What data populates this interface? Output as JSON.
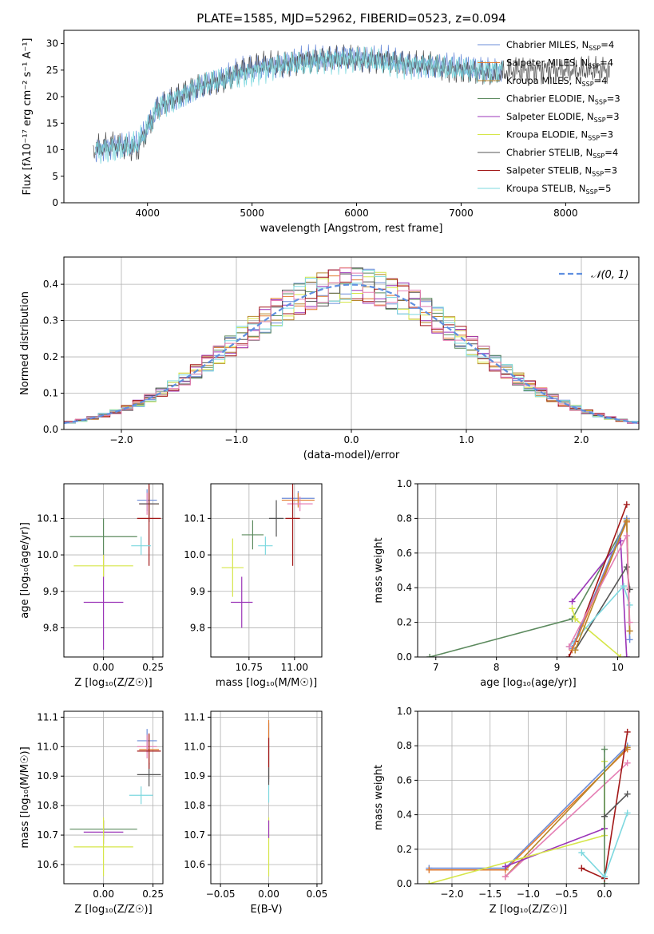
{
  "title": "PLATE=1585, MJD=52962, FIBERID=0523, z=0.094",
  "colors": {
    "Chabrier MILES": "#6b8cd9",
    "Salpeter MILES": "#e27a2c",
    "Kroupa MILES": "#b8862b",
    "Chabrier ELODIE": "#5c8a5e",
    "Salpeter ELODIE": "#9b35b8",
    "Kroupa ELODIE": "#d6e64a",
    "Chabrier STELIB": "#555555",
    "Salpeter STELIB": "#a21818",
    "Kroupa STELIB": "#7dd8df",
    "pink": "#e57fb5"
  },
  "chart_data": [
    {
      "id": "spectrum",
      "type": "line",
      "title": "PLATE=1585, MJD=52962, FIBERID=0523, z=0.094",
      "xlabel": "wavelength [Angstrom, rest frame]",
      "ylabel": "Flux [fλ10⁻¹⁷ erg cm⁻² s⁻¹ A⁻¹]",
      "xlim": [
        3200,
        8700
      ],
      "ylim": [
        0,
        32.5
      ],
      "xticks": [
        4000,
        5000,
        6000,
        7000,
        8000
      ],
      "yticks": [
        0,
        5,
        10,
        15,
        20,
        25,
        30
      ],
      "legend_position": "right",
      "legend": [
        {
          "label": "Chabrier MILES, N",
          "sub": "SSP",
          "tail": "=4",
          "color": "#6b8cd9"
        },
        {
          "label": "Salpeter MILES, N",
          "sub": "SSP",
          "tail": "=4",
          "color": "#e27a2c"
        },
        {
          "label": "Kroupa MILES, N",
          "sub": "SSP",
          "tail": "=4",
          "color": "#b8862b"
        },
        {
          "label": "Chabrier ELODIE, N",
          "sub": "SSP",
          "tail": "=3",
          "color": "#5c8a5e"
        },
        {
          "label": "Salpeter ELODIE, N",
          "sub": "SSP",
          "tail": "=3",
          "color": "#9b35b8"
        },
        {
          "label": "Kroupa ELODIE, N",
          "sub": "SSP",
          "tail": "=3",
          "color": "#d6e64a"
        },
        {
          "label": "Chabrier STELIB, N",
          "sub": "SSP",
          "tail": "=4",
          "color": "#555555"
        },
        {
          "label": "Salpeter STELIB, N",
          "sub": "SSP",
          "tail": "=3",
          "color": "#a21818"
        },
        {
          "label": "Kroupa STELIB, N",
          "sub": "SSP",
          "tail": "=5",
          "color": "#7dd8df"
        }
      ],
      "series": [
        {
          "name": "Chabrier MILES",
          "color": "#6b8cd9",
          "x": [
            3500,
            3700,
            3900,
            4000,
            4100,
            4300,
            4500,
            4700,
            4900,
            5100,
            5300,
            5500,
            5700,
            5900,
            6100,
            6300,
            6500,
            6700,
            6900,
            7100,
            7300,
            7400
          ],
          "y": [
            10,
            11,
            11,
            14,
            18,
            20,
            22,
            23,
            25,
            26,
            26,
            27,
            27,
            28,
            27,
            27,
            26,
            26,
            26,
            25,
            25,
            25
          ]
        },
        {
          "name": "Chabrier STELIB",
          "color": "#555555",
          "x": [
            3480,
            3700,
            3900,
            4000,
            4100,
            4300,
            4500,
            4700,
            4900,
            5100,
            5300,
            5500,
            5700,
            5900,
            6100,
            6300,
            6500,
            6700,
            6900,
            7100,
            7300,
            7500,
            7700,
            7900,
            8100,
            8300,
            8420
          ],
          "y": [
            10,
            11,
            10,
            14,
            18,
            20,
            22,
            23,
            25,
            26,
            26,
            27,
            27,
            27,
            27,
            27,
            26,
            26,
            25,
            25,
            24,
            25,
            25,
            25,
            25,
            25,
            25
          ]
        },
        {
          "name": "Kroupa STELIB",
          "color": "#7dd8df",
          "x": [
            3500,
            3700,
            3900,
            4000,
            4100,
            4300,
            4500,
            4700,
            4900,
            5100,
            5300,
            5500,
            5700,
            5900,
            6100,
            6300,
            6500,
            6700,
            6900,
            7100,
            7300,
            7400
          ],
          "y": [
            10,
            10,
            11,
            14,
            18,
            20,
            22,
            23,
            24,
            25,
            26,
            26,
            27,
            27,
            27,
            26,
            26,
            26,
            25,
            25,
            25,
            25
          ]
        }
      ]
    },
    {
      "id": "residuals",
      "type": "line",
      "xlabel": "(data-model)/error",
      "ylabel": "Normed distribution",
      "xlim": [
        -2.5,
        2.5
      ],
      "ylim": [
        0,
        0.475
      ],
      "xticks": [
        -2,
        -1,
        0,
        1,
        2
      ],
      "yticks": [
        0.0,
        0.1,
        0.2,
        0.3,
        0.4
      ],
      "legend_position": "top-right",
      "legend": [
        {
          "label": "𝒩(0, 1)",
          "color": "#5f8fe0"
        }
      ],
      "series": [
        {
          "name": "𝒩(0, 1)",
          "color": "#5f8fe0",
          "mu": 0,
          "sigma": 1
        }
      ]
    },
    {
      "id": "age-vs-Z",
      "type": "scatter",
      "xlabel": "Z [log₁₀(Z/Z☉)]",
      "ylabel": "age  [log₁₀(age/yr)]",
      "xlim": [
        -0.2,
        0.3
      ],
      "ylim": [
        9.72,
        10.195
      ],
      "xticks": [
        0.0,
        0.25
      ],
      "yticks": [
        9.8,
        9.9,
        10.0,
        10.1
      ],
      "points": [
        {
          "x": 0.22,
          "y": 10.15,
          "xerr": 0.05,
          "yerr": 0.03,
          "color": "#6b8cd9"
        },
        {
          "x": 0.23,
          "y": 10.14,
          "xerr": 0.05,
          "yerr": 0.03,
          "color": "#e27a2c"
        },
        {
          "x": 0.22,
          "y": 10.14,
          "xerr": 0.04,
          "yerr": 0.03,
          "color": "#e57fb5"
        },
        {
          "x": 0.0,
          "y": 10.05,
          "xerr": 0.17,
          "yerr": 0.05,
          "color": "#5c8a5e"
        },
        {
          "x": 0.0,
          "y": 9.87,
          "xerr": 0.1,
          "yerr": 0.13,
          "color": "#9b35b8"
        },
        {
          "x": 0.0,
          "y": 9.97,
          "xerr": 0.15,
          "yerr": 0.03,
          "color": "#d6e64a"
        },
        {
          "x": 0.23,
          "y": 10.14,
          "xerr": 0.05,
          "yerr": 0.05,
          "color": "#555555"
        },
        {
          "x": 0.23,
          "y": 10.1,
          "xerr": 0.06,
          "yerr": 0.13,
          "color": "#a21818"
        },
        {
          "x": 0.19,
          "y": 10.025,
          "xerr": 0.05,
          "yerr": 0.025,
          "color": "#7dd8df"
        }
      ]
    },
    {
      "id": "age-vs-mass",
      "type": "scatter",
      "xlabel": "mass [log₁₀(M/M☉)]",
      "ylabel": "",
      "xlim": [
        10.54,
        11.15
      ],
      "ylim": [
        9.72,
        10.195
      ],
      "xticks": [
        10.75,
        11.0
      ],
      "yticks": [
        9.8,
        9.9,
        10.0,
        10.1
      ],
      "points": [
        {
          "x": 11.02,
          "y": 10.155,
          "xerr": 0.09,
          "yerr": 0.02,
          "color": "#6b8cd9"
        },
        {
          "x": 11.02,
          "y": 10.15,
          "xerr": 0.09,
          "yerr": 0.02,
          "color": "#e27a2c"
        },
        {
          "x": 11.03,
          "y": 10.14,
          "xerr": 0.07,
          "yerr": 0.02,
          "color": "#e57fb5"
        },
        {
          "x": 10.77,
          "y": 10.055,
          "xerr": 0.06,
          "yerr": 0.04,
          "color": "#5c8a5e"
        },
        {
          "x": 10.71,
          "y": 9.87,
          "xerr": 0.06,
          "yerr": 0.07,
          "color": "#9b35b8"
        },
        {
          "x": 10.66,
          "y": 9.965,
          "xerr": 0.06,
          "yerr": 0.08,
          "color": "#d6e64a"
        },
        {
          "x": 10.9,
          "y": 10.1,
          "xerr": 0.04,
          "yerr": 0.05,
          "color": "#555555"
        },
        {
          "x": 10.99,
          "y": 10.1,
          "xerr": 0.04,
          "yerr": 0.13,
          "color": "#a21818"
        },
        {
          "x": 10.84,
          "y": 10.025,
          "xerr": 0.04,
          "yerr": 0.025,
          "color": "#7dd8df"
        }
      ]
    },
    {
      "id": "weight-vs-age",
      "type": "line",
      "xlabel": "age  [log₁₀(age/yr)]",
      "ylabel": "mass weight",
      "xlim": [
        6.7,
        10.35
      ],
      "ylim": [
        0,
        1.0
      ],
      "xticks": [
        7,
        8,
        9,
        10
      ],
      "yticks": [
        0.0,
        0.2,
        0.4,
        0.6,
        0.8,
        1.0
      ],
      "series": [
        {
          "name": "Chabrier ELODIE",
          "color": "#5c8a5e",
          "x": [
            6.9,
            9.25,
            10.15
          ],
          "y": [
            0.0,
            0.22,
            0.78
          ]
        },
        {
          "name": "Salpeter ELODIE",
          "color": "#9b35b8",
          "x": [
            9.25,
            10.05,
            10.15
          ],
          "y": [
            0.32,
            0.67,
            0.0
          ]
        },
        {
          "name": "Kroupa ELODIE",
          "color": "#d6e64a",
          "x": [
            9.25,
            9.3,
            10.05
          ],
          "y": [
            0.28,
            0.22,
            0.0
          ]
        },
        {
          "name": "Salpeter STELIB",
          "color": "#a21818",
          "x": [
            9.2,
            9.3,
            10.15
          ],
          "y": [
            0.0,
            0.09,
            0.88
          ]
        },
        {
          "name": "Chabrier STELIB",
          "color": "#555555",
          "x": [
            9.3,
            10.15,
            10.2
          ],
          "y": [
            0.04,
            0.52,
            0.39
          ]
        },
        {
          "name": "Kroupa STELIB",
          "color": "#7dd8df",
          "x": [
            9.2,
            10.1,
            10.2
          ],
          "y": [
            0.06,
            0.41,
            0.3
          ]
        },
        {
          "name": "Chabrier MILES",
          "color": "#6b8cd9",
          "x": [
            9.25,
            10.15,
            10.2
          ],
          "y": [
            0.05,
            0.8,
            0.1
          ]
        },
        {
          "name": "Salpeter MILES",
          "color": "#e27a2c",
          "x": [
            9.25,
            10.15,
            10.2
          ],
          "y": [
            0.04,
            0.78,
            0.15
          ]
        },
        {
          "name": "Kroupa MILES",
          "color": "#b8862b",
          "x": [
            9.3,
            10.15,
            10.2
          ],
          "y": [
            0.04,
            0.79,
            0.15
          ]
        },
        {
          "name": "",
          "color": "#e57fb5",
          "x": [
            9.2,
            10.15,
            10.2
          ],
          "y": [
            0.06,
            0.7,
            0.2
          ]
        }
      ]
    },
    {
      "id": "mass-vs-Z",
      "type": "scatter",
      "xlabel": "Z [log₁₀(Z/Z☉)]",
      "ylabel": "mass [log₁₀(M/M☉)]",
      "xlim": [
        -0.2,
        0.3
      ],
      "ylim": [
        10.535,
        11.12
      ],
      "xticks": [
        0.0,
        0.25
      ],
      "yticks": [
        10.6,
        10.7,
        10.8,
        10.9,
        11.0,
        11.1
      ],
      "points": [
        {
          "x": 0.22,
          "y": 11.02,
          "xerr": 0.05,
          "yerr": 0.04,
          "color": "#6b8cd9"
        },
        {
          "x": 0.23,
          "y": 10.99,
          "xerr": 0.05,
          "yerr": 0.05,
          "color": "#e27a2c"
        },
        {
          "x": 0.22,
          "y": 11.0,
          "xerr": 0.05,
          "yerr": 0.04,
          "color": "#e57fb5"
        },
        {
          "x": 0.0,
          "y": 10.72,
          "xerr": 0.17,
          "yerr": 0.03,
          "color": "#5c8a5e"
        },
        {
          "x": 0.0,
          "y": 10.71,
          "xerr": 0.1,
          "yerr": 0.04,
          "color": "#9b35b8"
        },
        {
          "x": 0.0,
          "y": 10.66,
          "xerr": 0.15,
          "yerr": 0.1,
          "color": "#d6e64a"
        },
        {
          "x": 0.23,
          "y": 10.905,
          "xerr": 0.06,
          "yerr": 0.04,
          "color": "#555555"
        },
        {
          "x": 0.23,
          "y": 10.985,
          "xerr": 0.06,
          "yerr": 0.06,
          "color": "#a21818"
        },
        {
          "x": 0.19,
          "y": 10.835,
          "xerr": 0.06,
          "yerr": 0.03,
          "color": "#7dd8df"
        }
      ]
    },
    {
      "id": "mass-vs-ebv",
      "type": "scatter",
      "xlabel": "E(B-V)",
      "ylabel": "",
      "xlim": [
        -0.06,
        0.055
      ],
      "ylim": [
        10.535,
        11.12
      ],
      "xticks": [
        -0.05,
        0.0,
        0.05
      ],
      "yticks": [
        10.6,
        10.7,
        10.8,
        10.9,
        11.0,
        11.1
      ],
      "points": [
        {
          "x": 0.0,
          "y": 10.98,
          "xerr": 0,
          "yerr": 0.1,
          "color": "#6b8cd9"
        },
        {
          "x": 0.0,
          "y": 10.99,
          "xerr": 0,
          "yerr": 0.1,
          "color": "#e27a2c"
        },
        {
          "x": 0.0,
          "y": 10.66,
          "xerr": 0,
          "yerr": 0.1,
          "color": "#d6e64a"
        },
        {
          "x": 0.0,
          "y": 10.72,
          "xerr": 0,
          "yerr": 0.03,
          "color": "#9b35b8"
        },
        {
          "x": 0.0,
          "y": 10.9,
          "xerr": 0,
          "yerr": 0.03,
          "color": "#555555"
        },
        {
          "x": 0.0,
          "y": 10.98,
          "xerr": 0,
          "yerr": 0.05,
          "color": "#a21818"
        },
        {
          "x": 0.0,
          "y": 10.84,
          "xerr": 0,
          "yerr": 0.03,
          "color": "#7dd8df"
        }
      ]
    },
    {
      "id": "weight-vs-Z",
      "type": "line",
      "xlabel": "Z [log₁₀(Z/Z☉)]",
      "ylabel": "mass weight",
      "xlim": [
        -2.45,
        0.45
      ],
      "ylim": [
        0,
        1.0
      ],
      "xticks": [
        -2.0,
        -1.5,
        -1.0,
        -0.5,
        0.0
      ],
      "yticks": [
        0.0,
        0.2,
        0.4,
        0.6,
        0.8,
        1.0
      ],
      "series": [
        {
          "name": "Chabrier MILES",
          "color": "#6b8cd9",
          "x": [
            -2.3,
            -1.3,
            0.3
          ],
          "y": [
            0.09,
            0.09,
            0.8
          ]
        },
        {
          "name": "Salpeter MILES",
          "color": "#e27a2c",
          "x": [
            -2.3,
            -1.3,
            0.3
          ],
          "y": [
            0.08,
            0.08,
            0.78
          ]
        },
        {
          "name": "Kroupa MILES",
          "color": "#b8862b",
          "x": [
            -1.3,
            0.3
          ],
          "y": [
            0.04,
            0.79
          ]
        },
        {
          "name": "",
          "color": "#e57fb5",
          "x": [
            -1.3,
            0.3
          ],
          "y": [
            0.04,
            0.7
          ]
        },
        {
          "name": "Salpeter ELODIE",
          "color": "#9b35b8",
          "x": [
            -1.3,
            0.0
          ],
          "y": [
            0.1,
            0.32
          ]
        },
        {
          "name": "Kroupa ELODIE",
          "color": "#d6e64a",
          "x": [
            -2.3,
            0.0,
            0.0
          ],
          "y": [
            0.0,
            0.28,
            0.71
          ]
        },
        {
          "name": "Chabrier ELODIE",
          "color": "#5c8a5e",
          "x": [
            0.0,
            0.0
          ],
          "y": [
            0.0,
            0.78
          ]
        },
        {
          "name": "Salpeter STELIB",
          "color": "#a21818",
          "x": [
            -0.3,
            0.0,
            0.3
          ],
          "y": [
            0.09,
            0.03,
            0.88
          ]
        },
        {
          "name": "Chabrier STELIB",
          "color": "#555555",
          "x": [
            0.0,
            0.3
          ],
          "y": [
            0.39,
            0.52
          ]
        },
        {
          "name": "Kroupa STELIB",
          "color": "#7dd8df",
          "x": [
            -0.3,
            0.0,
            0.3
          ],
          "y": [
            0.18,
            0.04,
            0.41
          ]
        }
      ]
    }
  ]
}
